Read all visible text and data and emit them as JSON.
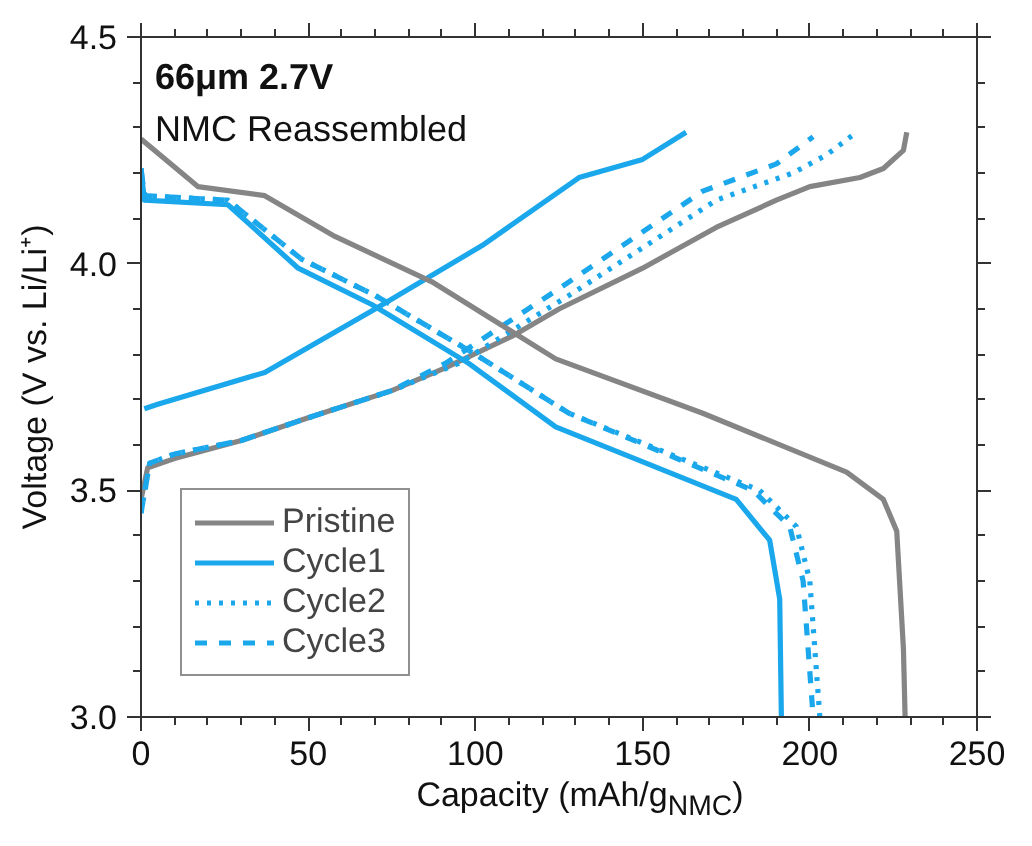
{
  "chart_data": {
    "type": "line",
    "title": "66μm 2.7V",
    "subtitle": "NMC Reassembled",
    "xlabel": "Capacity (mAh/g$_{NMC}$)",
    "ylabel": "Voltage (V vs. Li/Li⁺)",
    "xlim": [
      0,
      250
    ],
    "ylim": [
      3.0,
      4.5
    ],
    "xticks": [
      0,
      50,
      100,
      150,
      200,
      250
    ],
    "yticks": [
      {
        "value": 3.0,
        "label": "3.0"
      },
      {
        "value": 3.5,
        "label": "3.5"
      },
      {
        "value": 4.0,
        "label": "4.0"
      },
      {
        "value": 4.5,
        "label": "4.5"
      }
    ],
    "grid": false,
    "legend": "bottom left",
    "marker": "none",
    "series": [
      {
        "name": "Pristine",
        "color": "#858585",
        "line_style": "solid",
        "x": [
          0,
          2,
          10,
          30,
          50,
          75,
          91,
          111,
          125,
          150,
          172,
          190,
          200,
          215,
          222,
          228,
          229
        ],
        "values": [
          3.48,
          3.55,
          3.57,
          3.61,
          3.66,
          3.72,
          3.77,
          3.84,
          3.9,
          3.99,
          4.08,
          4.14,
          4.17,
          4.19,
          4.21,
          4.25,
          4.29
        ]
      },
      {
        "name": "Cycle1",
        "color": "#1aa7ec",
        "line_style": "solid",
        "x": [
          1,
          5,
          37,
          70,
          102,
          131,
          150,
          163
        ],
        "values": [
          3.68,
          3.69,
          3.76,
          3.9,
          4.04,
          4.19,
          4.23,
          4.29
        ]
      },
      {
        "name": "Cycle2",
        "color": "#1aa7ec",
        "line_style": "dotted",
        "x": [
          0,
          2.6,
          10,
          30,
          50,
          75,
          95,
          128,
          172,
          195,
          205,
          214
        ],
        "values": [
          3.45,
          3.56,
          3.58,
          3.61,
          3.66,
          3.72,
          3.78,
          3.93,
          4.14,
          4.2,
          4.24,
          4.29
        ]
      },
      {
        "name": "Cycle3",
        "color": "#1aa7ec",
        "line_style": "dashed",
        "x": [
          0,
          2.6,
          10,
          30,
          50,
          75,
          91,
          124,
          168,
          190,
          201
        ],
        "values": [
          3.45,
          3.56,
          3.58,
          3.61,
          3.66,
          3.72,
          3.78,
          3.94,
          4.16,
          4.22,
          4.28
        ]
      },
      {
        "color": "#858585",
        "line_style": "solid",
        "x": [
          0,
          17,
          37,
          58,
          87,
          124,
          168,
          211,
          222,
          226,
          228,
          228.5
        ],
        "values": [
          4.275,
          4.17,
          4.15,
          4.06,
          3.96,
          3.79,
          3.67,
          3.54,
          3.48,
          3.41,
          3.15,
          3.0
        ]
      },
      {
        "color": "#1aa7ec",
        "line_style": "solid",
        "x": [
          0,
          1,
          26,
          47,
          69,
          98,
          124,
          178,
          188,
          191,
          191.5
        ],
        "values": [
          4.21,
          4.14,
          4.13,
          3.99,
          3.91,
          3.78,
          3.64,
          3.48,
          3.39,
          3.26,
          3.0
        ]
      },
      {
        "color": "#1aa7ec",
        "line_style": "dotted",
        "x": [
          0,
          1,
          26,
          48,
          70,
          100,
          128,
          185,
          196,
          200,
          202,
          203
        ],
        "values": [
          4.21,
          4.15,
          4.14,
          4.01,
          3.93,
          3.8,
          3.67,
          3.5,
          3.42,
          3.3,
          3.1,
          3.0
        ]
      },
      {
        "color": "#1aa7ec",
        "line_style": "dashed",
        "x": [
          0,
          1,
          26,
          48,
          70,
          100,
          128,
          183,
          194,
          198,
          200,
          201
        ],
        "values": [
          4.21,
          4.15,
          4.14,
          4.01,
          3.93,
          3.8,
          3.67,
          3.5,
          3.42,
          3.3,
          3.1,
          3.0
        ]
      }
    ]
  }
}
